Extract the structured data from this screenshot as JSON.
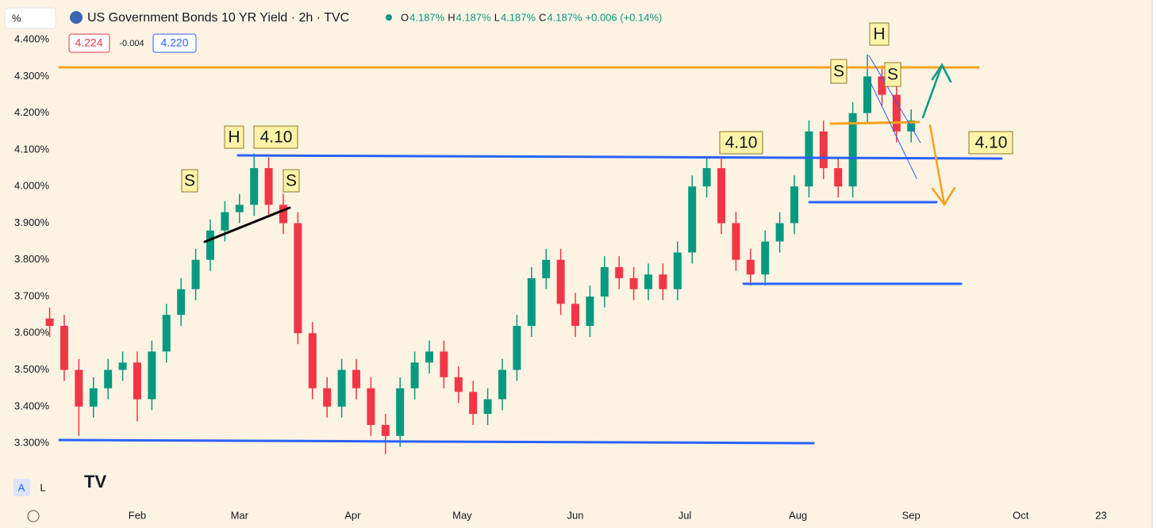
{
  "header": {
    "unit": "%",
    "title": "US Government Bonds 10 YR Yield · 2h · TVC",
    "ohlc": [
      {
        "label": "O",
        "value": "4.187%"
      },
      {
        "label": "H",
        "value": "4.187%"
      },
      {
        "label": "L",
        "value": "4.187%"
      },
      {
        "label": "C",
        "value": "4.187%"
      }
    ],
    "change": "+0.006 (+0.14%)",
    "sell": "4.224",
    "spread": "-0.004",
    "buy": "4.220",
    "buttons": [
      "A",
      "L"
    ]
  },
  "chart_data": {
    "type": "candlestick",
    "x": [
      8,
      12,
      16,
      20,
      24,
      28,
      32,
      36,
      40,
      44,
      48,
      52,
      56,
      60,
      64,
      68,
      72,
      76,
      80,
      84,
      88,
      92,
      96,
      100,
      104,
      108,
      112,
      116,
      120,
      124,
      128,
      132,
      136,
      140,
      144,
      148,
      152,
      156,
      160,
      164,
      168,
      172,
      176,
      180,
      184,
      188,
      192,
      196,
      200,
      204,
      208,
      212,
      216,
      220,
      224,
      228,
      232,
      236,
      240,
      244
    ],
    "open": [
      3.64,
      3.62,
      3.5,
      3.4,
      3.45,
      3.5,
      3.52,
      3.42,
      3.55,
      3.65,
      3.72,
      3.8,
      3.88,
      3.93,
      3.95,
      4.05,
      3.95,
      3.9,
      3.6,
      3.45,
      3.4,
      3.5,
      3.45,
      3.35,
      3.32,
      3.45,
      3.52,
      3.55,
      3.48,
      3.44,
      3.38,
      3.42,
      3.5,
      3.62,
      3.75,
      3.8,
      3.68,
      3.62,
      3.7,
      3.78,
      3.75,
      3.72,
      3.76,
      3.72,
      3.82,
      4.0,
      4.05,
      3.9,
      3.8,
      3.76,
      3.85,
      3.9,
      4.0,
      4.15,
      4.05,
      4.0,
      4.2,
      4.3,
      4.25,
      4.15
    ],
    "high": [
      3.67,
      3.65,
      3.53,
      3.48,
      3.53,
      3.55,
      3.55,
      3.58,
      3.68,
      3.75,
      3.83,
      3.91,
      3.96,
      3.98,
      4.09,
      4.08,
      3.98,
      3.93,
      3.63,
      3.48,
      3.53,
      3.53,
      3.48,
      3.38,
      3.48,
      3.55,
      3.58,
      3.58,
      3.51,
      3.47,
      3.45,
      3.53,
      3.65,
      3.78,
      3.83,
      3.83,
      3.71,
      3.73,
      3.81,
      3.81,
      3.78,
      3.79,
      3.79,
      3.85,
      4.03,
      4.08,
      4.08,
      3.93,
      3.83,
      3.88,
      3.93,
      4.03,
      4.18,
      4.18,
      4.08,
      4.23,
      4.36,
      4.33,
      4.28,
      4.21
    ],
    "low": [
      3.59,
      3.47,
      3.32,
      3.37,
      3.42,
      3.47,
      3.36,
      3.39,
      3.52,
      3.62,
      3.69,
      3.77,
      3.85,
      3.9,
      3.92,
      3.92,
      3.87,
      3.57,
      3.42,
      3.37,
      3.37,
      3.42,
      3.32,
      3.27,
      3.29,
      3.42,
      3.49,
      3.45,
      3.41,
      3.35,
      3.35,
      3.39,
      3.47,
      3.59,
      3.72,
      3.65,
      3.59,
      3.59,
      3.67,
      3.72,
      3.69,
      3.69,
      3.69,
      3.69,
      3.79,
      3.97,
      3.87,
      3.77,
      3.73,
      3.73,
      3.82,
      3.87,
      3.97,
      4.02,
      3.97,
      3.97,
      4.17,
      4.22,
      4.12,
      4.12
    ],
    "close": [
      3.62,
      3.5,
      3.4,
      3.45,
      3.5,
      3.52,
      3.42,
      3.55,
      3.65,
      3.72,
      3.8,
      3.88,
      3.93,
      3.95,
      4.05,
      3.95,
      3.9,
      3.6,
      3.45,
      3.4,
      3.5,
      3.45,
      3.35,
      3.32,
      3.45,
      3.52,
      3.55,
      3.48,
      3.44,
      3.38,
      3.42,
      3.5,
      3.62,
      3.75,
      3.8,
      3.68,
      3.62,
      3.7,
      3.78,
      3.75,
      3.72,
      3.76,
      3.72,
      3.82,
      4.0,
      4.05,
      3.9,
      3.8,
      3.76,
      3.85,
      3.9,
      4.0,
      4.15,
      4.05,
      4.0,
      4.2,
      4.3,
      4.25,
      4.15,
      4.18
    ],
    "up_color": "#089981",
    "down_color": "#f23645",
    "xlim": [
      -5.6,
      309.6
    ],
    "xticks": [
      {
        "value": 32,
        "label": "Feb"
      },
      {
        "value": 60,
        "label": "Mar"
      },
      {
        "value": 91,
        "label": "Apr"
      },
      {
        "value": 121,
        "label": "May"
      },
      {
        "value": 152,
        "label": "Jun"
      },
      {
        "value": 182,
        "label": "Jul"
      },
      {
        "value": 213,
        "label": "Aug"
      },
      {
        "value": 244,
        "label": "Sep"
      },
      {
        "value": 274,
        "label": "Oct"
      },
      {
        "value": 296,
        "label": "23"
      }
    ],
    "ylim": [
      3.136,
      4.491
    ],
    "yticks": [
      {
        "value": 4.4,
        "label": "4.400%"
      },
      {
        "value": 4.3,
        "label": "4.300%"
      },
      {
        "value": 4.2,
        "label": "4.200%"
      },
      {
        "value": 4.1,
        "label": "4.100%"
      },
      {
        "value": 4.0,
        "label": "4.000%"
      },
      {
        "value": 3.9,
        "label": "3.900%"
      },
      {
        "value": 3.8,
        "label": "3.800%"
      },
      {
        "value": 3.7,
        "label": "3.700%"
      },
      {
        "value": 3.6,
        "label": "3.600%"
      },
      {
        "value": 3.5,
        "label": "3.500%"
      },
      {
        "value": 3.4,
        "label": "3.400%"
      },
      {
        "value": 3.3,
        "label": "3.300%"
      }
    ],
    "grid": false,
    "annotations": [
      "H",
      "4.10",
      "S",
      "S",
      "4.10",
      "S",
      "H",
      "S",
      "4.10"
    ]
  }
}
